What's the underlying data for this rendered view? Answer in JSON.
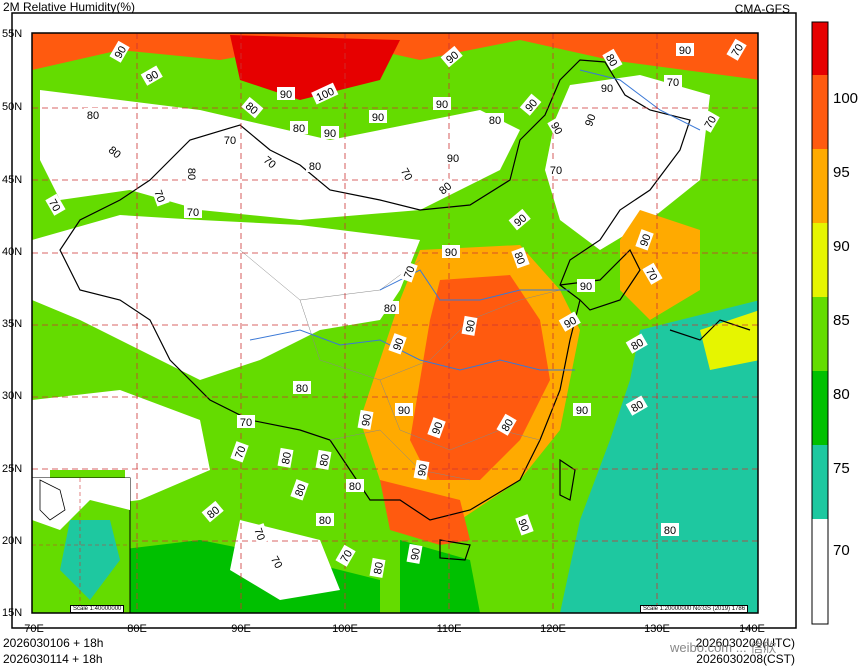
{
  "header": {
    "title": "2M Relative Humidity(%)",
    "source": "CMA-GFS"
  },
  "map": {
    "lat_labels": [
      "55N",
      "50N",
      "45N",
      "40N",
      "35N",
      "30N",
      "25N",
      "20N",
      "15N"
    ],
    "lon_labels": [
      "70E",
      "80E",
      "90E",
      "100E",
      "110E",
      "120E",
      "130E",
      "140E"
    ],
    "contour_labels": [
      "70",
      "80",
      "90",
      "100"
    ],
    "inset_scale": "Scale 1:40000000",
    "main_scale": "Scale 1:20000000 No:GS (2019) 1786"
  },
  "colorbar": {
    "levels": [
      "100",
      "95",
      "90",
      "85",
      "80",
      "75",
      "70"
    ],
    "colors": [
      "#e60000",
      "#ff5a0f",
      "#ffaa00",
      "#e6f500",
      "#64dc00",
      "#00c000",
      "#1ec8a0",
      "#ffffff"
    ]
  },
  "footer": {
    "init_utc": "2026030106 + 18h",
    "init_cst": "2026030114 + 18h",
    "valid_utc": "2026030200(UTC)",
    "valid_cst": "2026030208(CST)"
  },
  "watermark": "weibo.com ... 信欣"
}
